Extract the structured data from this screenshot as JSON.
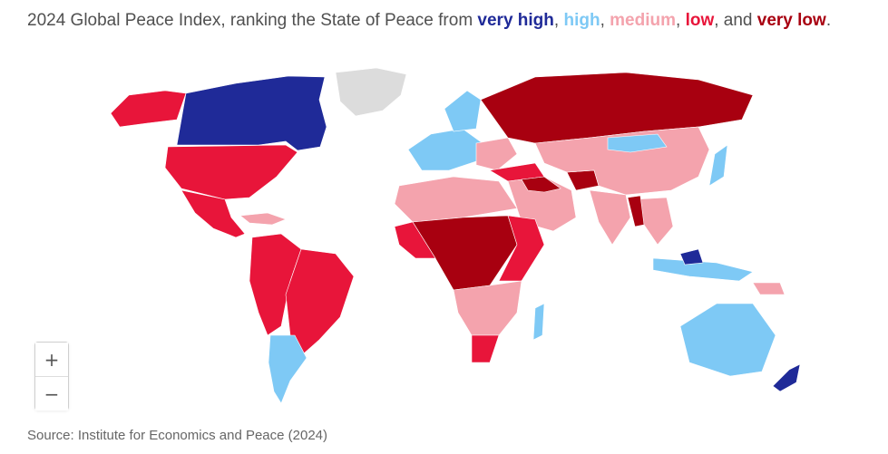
{
  "title": {
    "prefix": "2024 Global Peace Index, ranking the State of Peace from ",
    "very_high": "very high",
    "sep1": ", ",
    "high": "high",
    "sep2": ", ",
    "medium": "medium",
    "sep3": ", ",
    "low": "low",
    "sep4": ", and ",
    "very_low": "very low",
    "suffix": "."
  },
  "colors": {
    "very_high": "#1f2a98",
    "high": "#7ec9f5",
    "medium": "#f4a3ad",
    "low": "#e8153a",
    "very_low": "#a80010",
    "no_data": "#dcdcdc"
  },
  "zoom": {
    "in_label": "+",
    "out_label": "−"
  },
  "source": "Source: Institute for Economics and Peace (2024)"
}
